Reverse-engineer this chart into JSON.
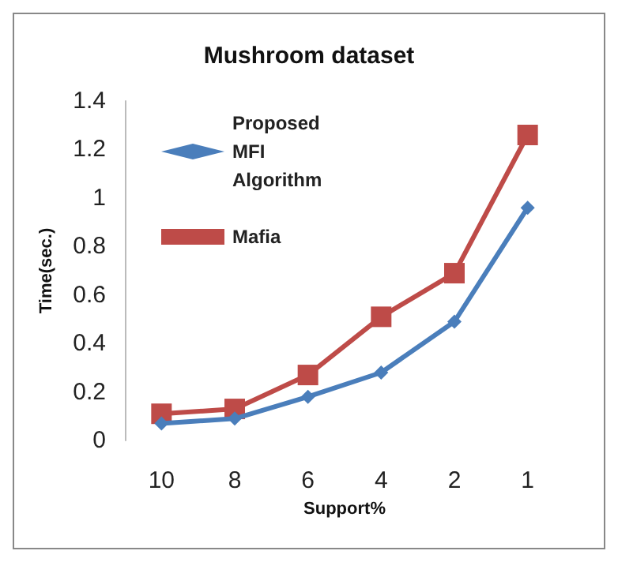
{
  "chart_data": {
    "type": "line",
    "title": "Mushroom dataset",
    "xlabel": "Support%",
    "ylabel": "Time(sec.)",
    "categories": [
      "10",
      "8",
      "6",
      "4",
      "2",
      "1"
    ],
    "series": [
      {
        "name": "Proposed MFI Algorithm",
        "color": "#4a7ebb",
        "marker": "diamond",
        "values": [
          0.07,
          0.09,
          0.18,
          0.28,
          0.49,
          0.96
        ]
      },
      {
        "name": "Mafia",
        "color": "#be4b48",
        "marker": "square",
        "values": [
          0.11,
          0.13,
          0.27,
          0.51,
          0.69,
          1.26
        ]
      }
    ],
    "ylim": [
      0,
      1.4
    ],
    "yticks": [
      0,
      0.2,
      0.4,
      0.6,
      0.8,
      1,
      1.2,
      1.4
    ],
    "grid": false,
    "legend": "top left",
    "line_style": "solid"
  }
}
